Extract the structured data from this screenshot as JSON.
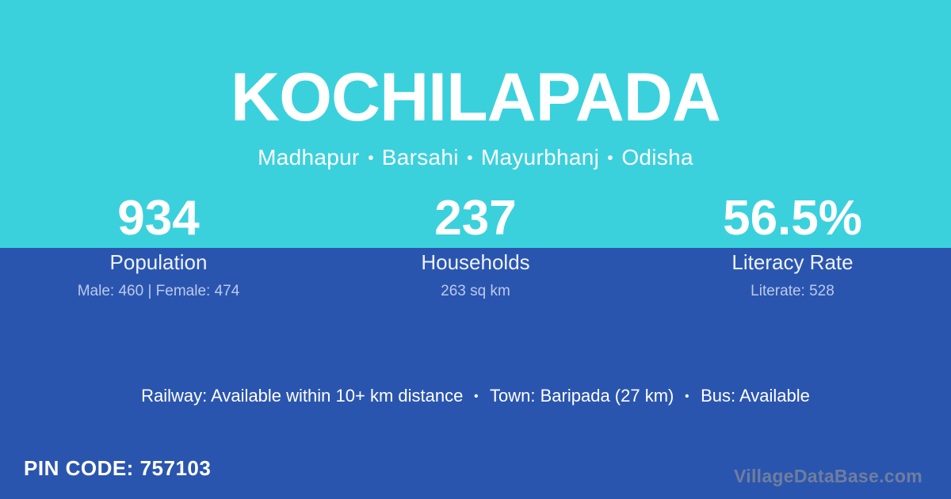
{
  "header": {
    "title": "KOCHILAPADA",
    "locations": [
      "Madhapur",
      "Barsahi",
      "Mayurbhanj",
      "Odisha"
    ],
    "separator": "•"
  },
  "stats": [
    {
      "value": "934",
      "label": "Population",
      "detail": "Male: 460 | Female: 474"
    },
    {
      "value": "237",
      "label": "Households",
      "detail": "263 sq km"
    },
    {
      "value": "56.5%",
      "label": "Literacy Rate",
      "detail": "Literate: 528"
    }
  ],
  "transit": {
    "segments": [
      "Railway: Available within 10+ km distance",
      "Town: Baripada (27 km)",
      "Bus: Available"
    ],
    "separator": "•"
  },
  "footer": {
    "pin_label": "PIN CODE:",
    "pin_value": "757103",
    "watermark": "VillageDataBase.com"
  },
  "colors": {
    "top_bg": "#3AD1DD",
    "bottom_bg": "#2A55AF",
    "text": "#FFFFFF",
    "muted_text": "#BCC9EC",
    "watermark_text": "#6F7E9E"
  }
}
